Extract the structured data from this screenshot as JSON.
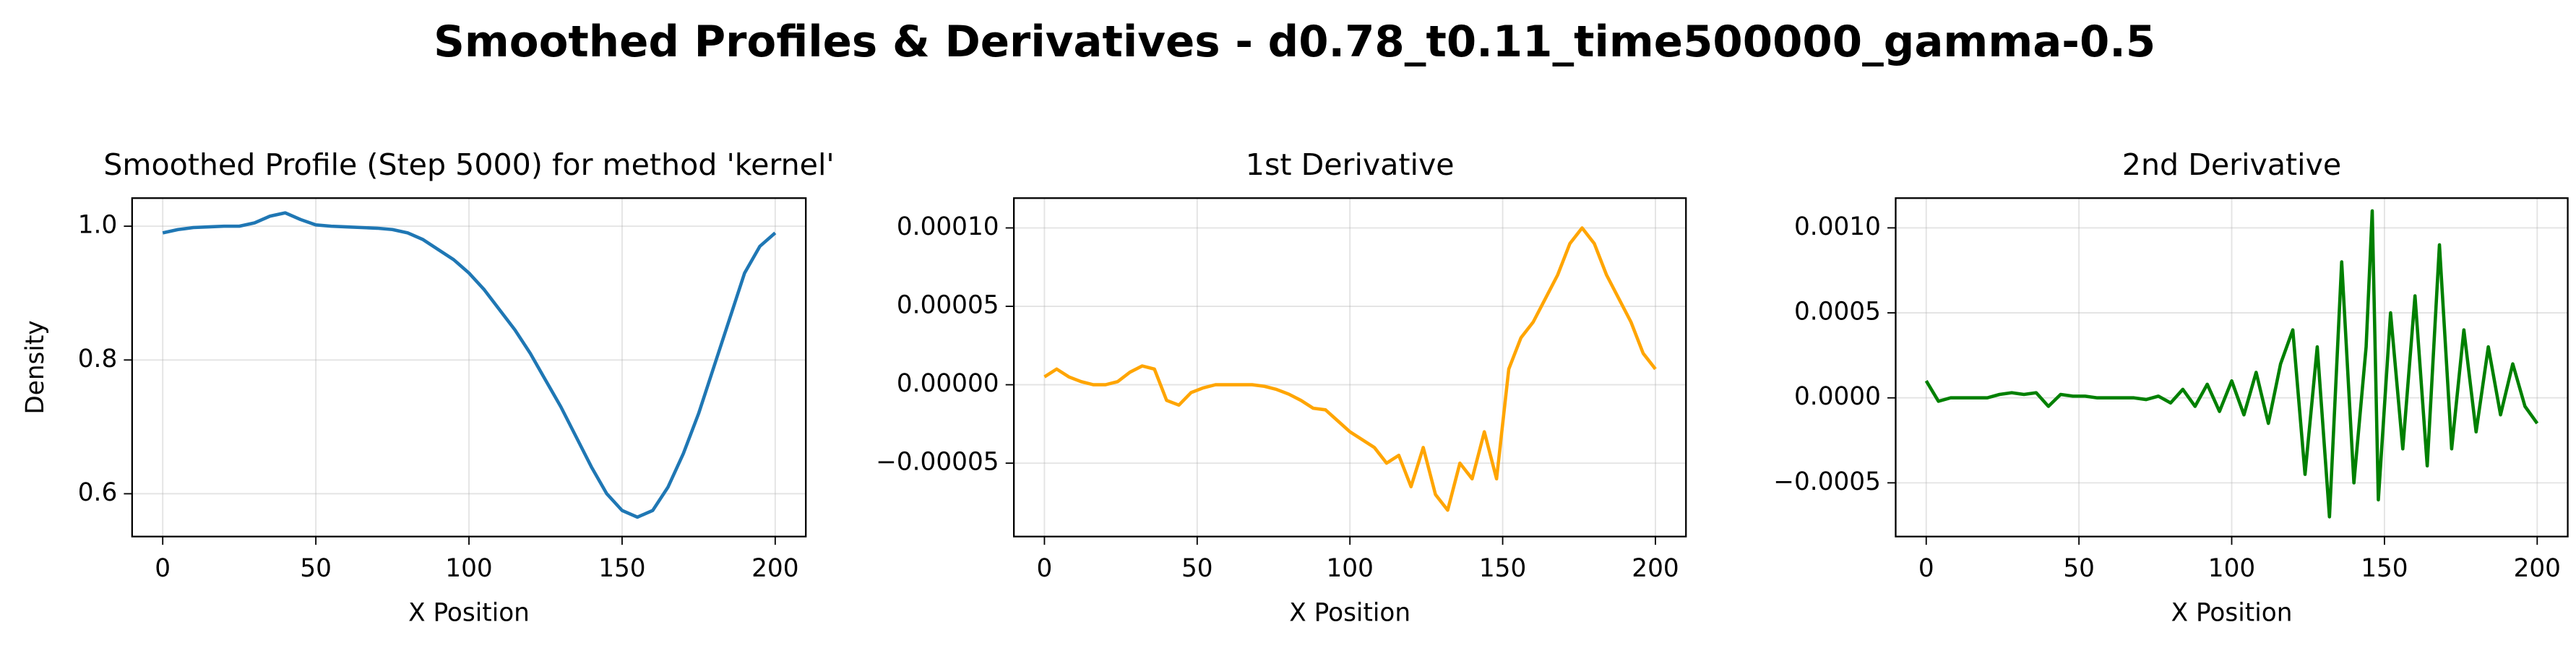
{
  "title": "Smoothed Profiles & Derivatives - d0.78_t0.11_time500000_gamma-0.5",
  "chart_data": [
    {
      "type": "line",
      "title": "Smoothed Profile (Step 5000) for method 'kernel'",
      "xlabel": "X Position",
      "ylabel": "Density",
      "color": "#1f77b4",
      "grid": true,
      "x": [
        0,
        5,
        10,
        15,
        20,
        25,
        30,
        35,
        40,
        45,
        50,
        55,
        60,
        65,
        70,
        75,
        80,
        85,
        90,
        95,
        100,
        105,
        110,
        115,
        120,
        125,
        130,
        135,
        140,
        145,
        150,
        155,
        160,
        165,
        170,
        175,
        180,
        185,
        190,
        195,
        200
      ],
      "values": [
        0.99,
        0.995,
        0.998,
        0.999,
        1.0,
        1.0,
        1.005,
        1.015,
        1.02,
        1.01,
        1.002,
        1.0,
        0.999,
        0.998,
        0.997,
        0.995,
        0.99,
        0.98,
        0.965,
        0.95,
        0.93,
        0.905,
        0.875,
        0.845,
        0.81,
        0.77,
        0.73,
        0.685,
        0.64,
        0.6,
        0.575,
        0.565,
        0.575,
        0.61,
        0.66,
        0.72,
        0.79,
        0.86,
        0.93,
        0.97,
        0.99
      ],
      "xlim": [
        -10,
        210
      ],
      "xticks": [
        0,
        50,
        100,
        150,
        200
      ],
      "ylim": [
        0.536,
        1.042
      ],
      "yticks": [
        0.6,
        0.8,
        {
          "value": 1.0,
          "label": "1.0"
        }
      ]
    },
    {
      "type": "line",
      "title": "1st Derivative",
      "xlabel": "X Position",
      "color": "#ffa500",
      "grid": true,
      "x": [
        0,
        4,
        8,
        12,
        16,
        20,
        24,
        28,
        32,
        36,
        40,
        44,
        48,
        52,
        56,
        60,
        64,
        68,
        72,
        76,
        80,
        84,
        88,
        92,
        96,
        100,
        104,
        108,
        112,
        116,
        120,
        124,
        128,
        132,
        136,
        140,
        144,
        148,
        152,
        156,
        160,
        164,
        168,
        172,
        176,
        180,
        184,
        188,
        192,
        196,
        200
      ],
      "values": [
        5e-06,
        1e-05,
        5e-06,
        2e-06,
        0,
        0,
        2e-06,
        8e-06,
        1.2e-05,
        1e-05,
        -1e-05,
        -1.3e-05,
        -5e-06,
        -2e-06,
        0,
        0,
        0,
        0,
        -1e-06,
        -3e-06,
        -6e-06,
        -1e-05,
        -1.5e-05,
        -1.6e-05,
        -2.3e-05,
        -3e-05,
        -3.5e-05,
        -4e-05,
        -5e-05,
        -4.5e-05,
        -6.5e-05,
        -4e-05,
        -7e-05,
        -8e-05,
        -5e-05,
        -6e-05,
        -3e-05,
        -6e-05,
        1e-05,
        3e-05,
        4e-05,
        5.5e-05,
        7e-05,
        9e-05,
        0.0001,
        9e-05,
        7e-05,
        5.5e-05,
        4e-05,
        2e-05,
        1e-05
      ],
      "xlim": [
        -10,
        210
      ],
      "xticks": [
        0,
        50,
        100,
        150,
        200
      ],
      "ylim": [
        -9.68e-05,
        0.000119
      ],
      "yticks": [
        {
          "value": -5e-05,
          "label": "−0.00005"
        },
        {
          "value": 0,
          "label": "0.00000"
        },
        {
          "value": 5e-05,
          "label": "0.00005"
        },
        {
          "value": 0.0001,
          "label": "0.00010"
        }
      ]
    },
    {
      "type": "line",
      "title": "2nd Derivative",
      "xlabel": "X Position",
      "color": "#008000",
      "grid": true,
      "x": [
        0,
        4,
        8,
        12,
        16,
        20,
        24,
        28,
        32,
        36,
        40,
        44,
        48,
        52,
        56,
        60,
        64,
        68,
        72,
        76,
        80,
        84,
        88,
        92,
        96,
        100,
        104,
        108,
        112,
        116,
        120,
        124,
        128,
        132,
        136,
        140,
        144,
        146,
        148,
        152,
        156,
        160,
        164,
        168,
        172,
        176,
        180,
        184,
        188,
        192,
        196,
        200
      ],
      "values": [
        0.0001,
        -2e-05,
        0,
        0,
        0,
        0,
        2e-05,
        3e-05,
        2e-05,
        3e-05,
        -5e-05,
        2e-05,
        1e-05,
        1e-05,
        0,
        0,
        0,
        0,
        -1e-05,
        1e-05,
        -3e-05,
        5e-05,
        -5e-05,
        8e-05,
        -8e-05,
        0.0001,
        -0.0001,
        0.00015,
        -0.00015,
        0.0002,
        0.0004,
        -0.00045,
        0.0003,
        -0.0007,
        0.0008,
        -0.0005,
        0.0003,
        0.0011,
        -0.0006,
        0.0005,
        -0.0003,
        0.0006,
        -0.0004,
        0.0009,
        -0.0003,
        0.0004,
        -0.0002,
        0.0003,
        -0.0001,
        0.0002,
        -5e-05,
        -0.00015
      ],
      "xlim": [
        -10,
        210
      ],
      "xticks": [
        0,
        50,
        100,
        150,
        200
      ],
      "ylim": [
        -0.000816,
        0.001175
      ],
      "yticks": [
        {
          "value": -0.0005,
          "label": "−0.0005"
        },
        {
          "value": 0,
          "label": "0.0000"
        },
        {
          "value": 0.0005,
          "label": "0.0005"
        },
        {
          "value": 0.001,
          "label": "0.0010"
        }
      ]
    }
  ]
}
